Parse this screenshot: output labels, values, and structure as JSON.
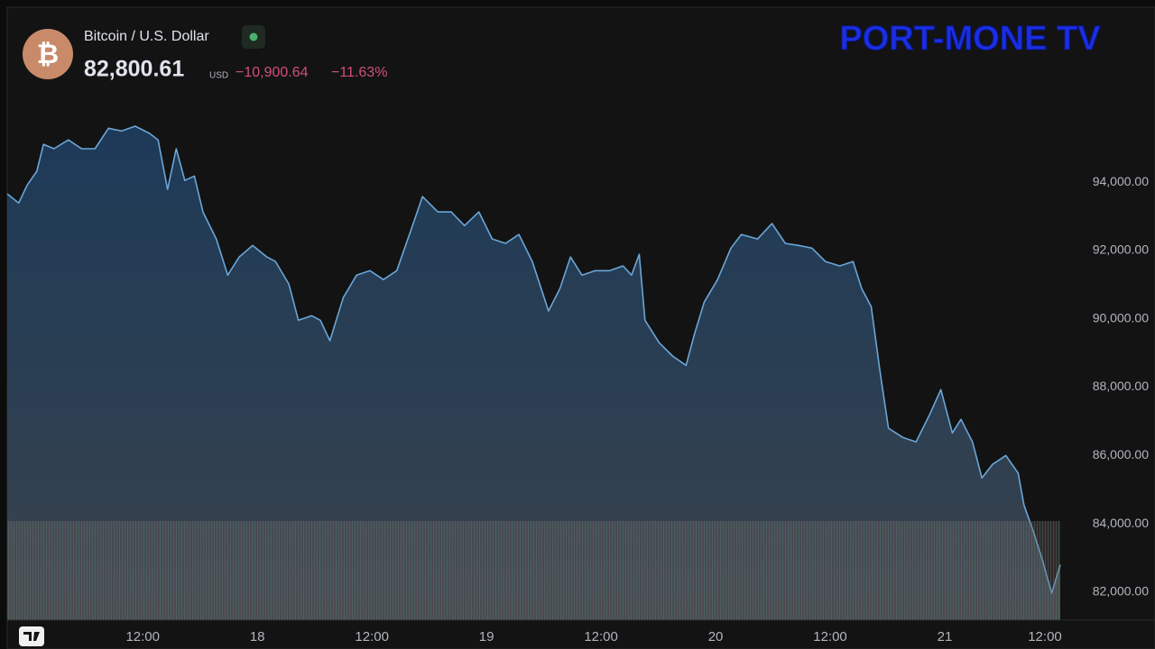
{
  "header": {
    "price": "82,800.61",
    "currency": "USD",
    "change": "−10,900.64",
    "change_pct": "−11.63%",
    "logo": "PORT-MONE TV"
  },
  "chart_data": {
    "type": "area",
    "title": "Bitcoin / U.S. Dollar",
    "color": "#6aa6d8",
    "grid": false,
    "x": [
      -2.2,
      -1.0,
      -0.1,
      0.9,
      1.6,
      2.7,
      4.2,
      5.6,
      7.0,
      8.4,
      9.8,
      11.2,
      12.7,
      13.6,
      14.6,
      15.5,
      16.4,
      17.4,
      18.3,
      19.7,
      20.9,
      22.1,
      23.5,
      25.0,
      25.9,
      27.3,
      28.3,
      29.7,
      30.6,
      31.6,
      33.0,
      34.4,
      35.8,
      37.2,
      38.6,
      40.1,
      41.3,
      42.9,
      44.3,
      45.7,
      47.2,
      48.6,
      50.0,
      51.4,
      52.8,
      54.5,
      55.7,
      56.8,
      58.0,
      59.4,
      60.9,
      62.3,
      63.2,
      64.0,
      64.6,
      66.1,
      67.5,
      68.9,
      69.8,
      70.8,
      72.2,
      73.6,
      74.7,
      76.4,
      77.9,
      79.3,
      80.7,
      82.1,
      83.5,
      85.0,
      86.4,
      87.3,
      88.3,
      89.2,
      90.1,
      91.6,
      93.0,
      94.4,
      95.6,
      96.8,
      97.7,
      98.9,
      99.9,
      101.0,
      102.4,
      103.7,
      104.3,
      105.3,
      106.2,
      107.2,
      108.1
    ],
    "values": [
      93660,
      93390,
      93920,
      94320,
      95110,
      94980,
      95240,
      94980,
      94980,
      95580,
      95500,
      95640,
      95430,
      95240,
      93790,
      94980,
      94050,
      94180,
      93130,
      92340,
      91280,
      91810,
      92150,
      91810,
      91680,
      91020,
      89960,
      90090,
      89960,
      89360,
      90620,
      91280,
      91410,
      91150,
      91410,
      92600,
      93580,
      93130,
      93130,
      92730,
      93130,
      92340,
      92210,
      92470,
      91680,
      90230,
      90890,
      91810,
      91280,
      91410,
      91410,
      91550,
      91280,
      91890,
      89960,
      89300,
      88910,
      88640,
      89570,
      90490,
      91150,
      92070,
      92470,
      92340,
      92790,
      92210,
      92150,
      92070,
      91680,
      91550,
      91680,
      90890,
      90360,
      88510,
      86800,
      86530,
      86400,
      87190,
      87930,
      86660,
      87060,
      86400,
      85340,
      85740,
      86000,
      85480,
      84550,
      83760,
      82970,
      81970,
      82800
    ],
    "xlim": [
      -2.2,
      108.1
    ],
    "xticks": [
      {
        "value": 12,
        "label": "12:00"
      },
      {
        "value": 24,
        "label": "18"
      },
      {
        "value": 36,
        "label": "12:00"
      },
      {
        "value": 48,
        "label": "19"
      },
      {
        "value": 60,
        "label": "12:00"
      },
      {
        "value": 72,
        "label": "20"
      },
      {
        "value": 84,
        "label": "12:00"
      },
      {
        "value": 96,
        "label": "21"
      },
      {
        "value": 108,
        "label": "12:00"
      }
    ],
    "ylim": [
      81180,
      99070
    ],
    "yticks": [
      {
        "value": 82000,
        "label": "82,000.00"
      },
      {
        "value": 84000,
        "label": "84,000.00"
      },
      {
        "value": 86000,
        "label": "86,000.00"
      },
      {
        "value": 88000,
        "label": "88,000.00"
      },
      {
        "value": 90000,
        "label": "90,000.00"
      },
      {
        "value": 92000,
        "label": "92,000.00"
      },
      {
        "value": 94000,
        "label": "94,000.00"
      }
    ]
  }
}
